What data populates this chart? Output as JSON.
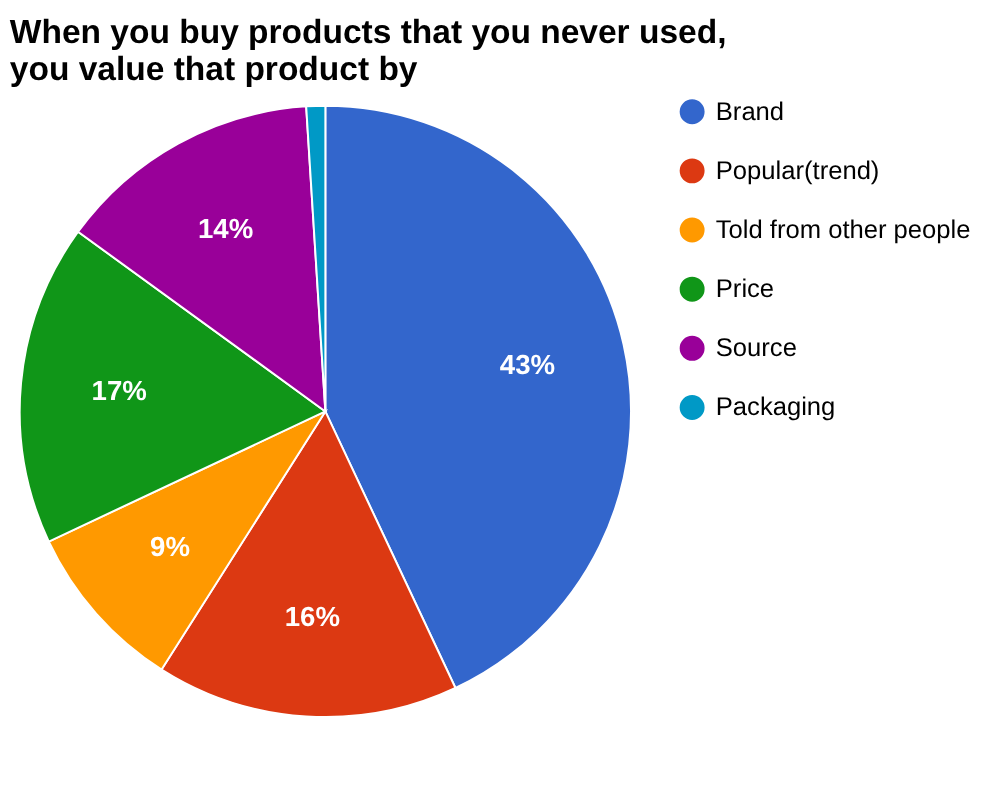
{
  "chart_data": {
    "type": "pie",
    "title": "When you buy products that you never used, you value that product by",
    "categories": [
      "Brand",
      "Popular(trend)",
      "Told from other people",
      "Price",
      "Source",
      "Packaging"
    ],
    "values": [
      43,
      16,
      9,
      17,
      14,
      1
    ],
    "value_labels": [
      "43%",
      "16%",
      "9%",
      "17%",
      "14%",
      null
    ],
    "colors": [
      "#3366cc",
      "#dc3912",
      "#ff9900",
      "#109618",
      "#990099",
      "#0099c6"
    ],
    "legend": "right"
  }
}
